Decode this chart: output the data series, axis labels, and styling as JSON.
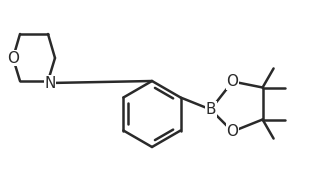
{
  "background": "#ffffff",
  "line_color": "#2a2a2a",
  "line_width": 1.8,
  "figsize": [
    3.2,
    1.76
  ],
  "dpi": 100,
  "morph_O_label": {
    "text": "O",
    "fontsize": 11
  },
  "morph_N_label": {
    "text": "N",
    "fontsize": 11
  },
  "boron_label": {
    "text": "B",
    "fontsize": 11
  },
  "O1_label": {
    "text": "O",
    "fontsize": 11
  },
  "O2_label": {
    "text": "O",
    "fontsize": 11
  },
  "scale": 1.0
}
